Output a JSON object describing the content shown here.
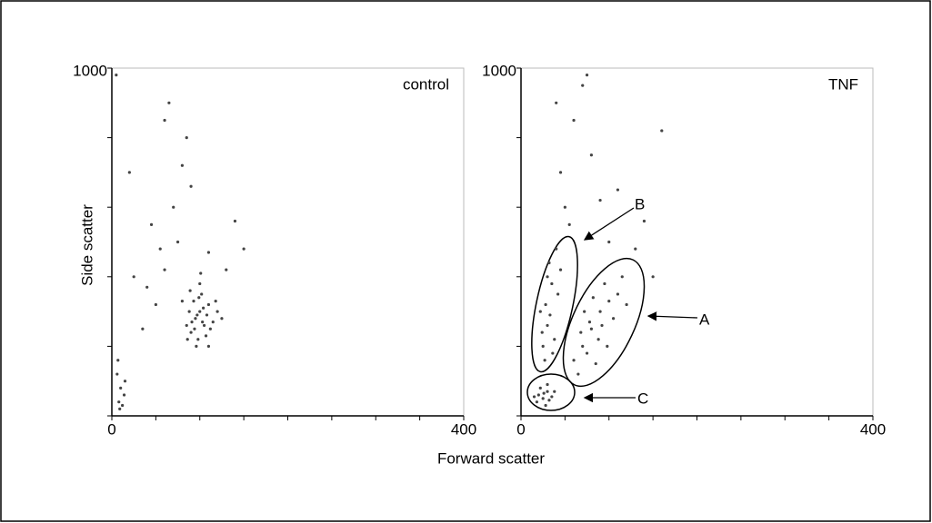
{
  "figure": {
    "xlabel": "Forward scatter",
    "ylabel": "Side scatter"
  },
  "chart_data": [
    {
      "type": "scatter",
      "label": "control",
      "color": "#444444",
      "xlim": [
        0,
        400
      ],
      "ylim": [
        0,
        1000
      ],
      "xticks": [
        0,
        400
      ],
      "yticks": [
        1000
      ],
      "x_minor_ticks": [
        0,
        50,
        100,
        150,
        200,
        250,
        300,
        350,
        400
      ],
      "y_minor_ticks": [
        0,
        200,
        400,
        600,
        800,
        1000
      ],
      "x": [
        95,
        100,
        105,
        90,
        110,
        98,
        102,
        88,
        115,
        93,
        107,
        85,
        120,
        100,
        96,
        112,
        104,
        91,
        99,
        118,
        86,
        108,
        94,
        101,
        110,
        80,
        125,
        97,
        103,
        89,
        8,
        10,
        12,
        6,
        14,
        9,
        15,
        7,
        50,
        60,
        45,
        70,
        65,
        80,
        55,
        40,
        75,
        130,
        140,
        85,
        35,
        20,
        150,
        60,
        90,
        110,
        25,
        5
      ],
      "y": [
        280,
        300,
        260,
        240,
        320,
        220,
        350,
        300,
        270,
        330,
        230,
        260,
        300,
        380,
        200,
        250,
        310,
        270,
        340,
        330,
        220,
        290,
        250,
        410,
        200,
        330,
        280,
        290,
        270,
        360,
        40,
        80,
        30,
        120,
        60,
        20,
        100,
        160,
        320,
        420,
        550,
        600,
        900,
        720,
        480,
        370,
        500,
        420,
        560,
        800,
        250,
        700,
        480,
        850,
        660,
        470,
        400,
        980
      ]
    },
    {
      "type": "scatter",
      "label": "TNF",
      "color": "#444444",
      "xlim": [
        0,
        400
      ],
      "ylim": [
        0,
        1000
      ],
      "xticks": [
        0,
        400
      ],
      "yticks": [
        1000
      ],
      "x_minor_ticks": [
        0,
        50,
        100,
        150,
        200,
        250,
        300,
        350,
        400
      ],
      "y_minor_ticks": [
        0,
        200,
        400,
        600,
        800,
        1000
      ],
      "x": [
        20,
        25,
        30,
        18,
        35,
        28,
        22,
        32,
        26,
        38,
        15,
        30,
        25,
        30,
        28,
        35,
        32,
        40,
        22,
        38,
        30,
        42,
        27,
        45,
        33,
        36,
        24,
        70,
        80,
        90,
        100,
        75,
        85,
        95,
        110,
        65,
        78,
        88,
        105,
        115,
        72,
        92,
        60,
        98,
        82,
        120,
        68,
        50,
        45,
        60,
        70,
        55,
        90,
        100,
        80,
        130,
        140,
        160,
        110,
        40,
        150,
        75
      ],
      "y": [
        60,
        50,
        70,
        40,
        55,
        30,
        80,
        45,
        65,
        70,
        55,
        90,
        200,
        260,
        320,
        380,
        440,
        480,
        300,
        220,
        400,
        350,
        160,
        420,
        290,
        180,
        240,
        200,
        250,
        300,
        330,
        180,
        150,
        380,
        350,
        120,
        270,
        220,
        280,
        400,
        300,
        260,
        160,
        200,
        340,
        320,
        240,
        600,
        700,
        850,
        950,
        550,
        620,
        500,
        750,
        480,
        560,
        820,
        650,
        900,
        400,
        980
      ],
      "annotations": [
        "B",
        "A",
        "C"
      ]
    }
  ]
}
